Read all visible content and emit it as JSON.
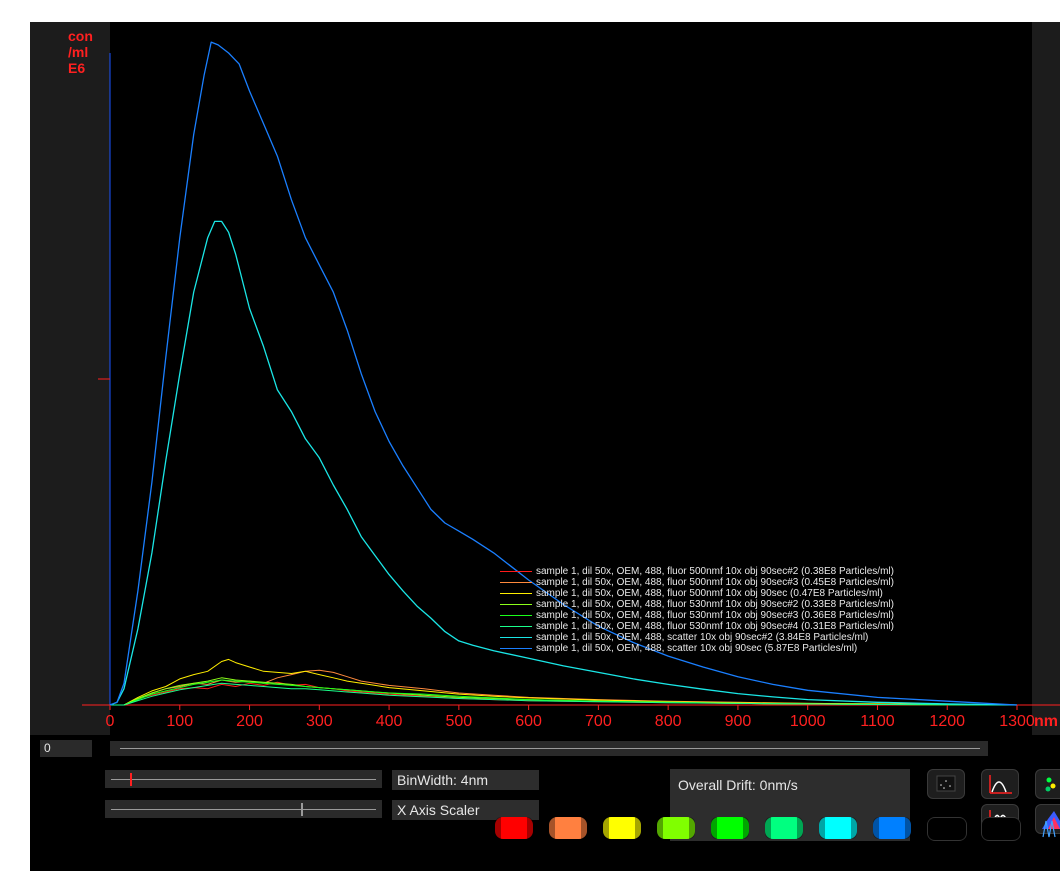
{
  "chart_data": {
    "type": "line",
    "y_unit_label": [
      "con",
      "/ml",
      "E6"
    ],
    "x_unit_label": "nm",
    "x_ticks": [
      "0",
      "100",
      "200",
      "300",
      "400",
      "500",
      "600",
      "700",
      "800",
      "900",
      "1000",
      "1100",
      "1200",
      "1300"
    ],
    "xlim": [
      0,
      1300
    ],
    "ylim": [
      0,
      12
    ],
    "series": [
      {
        "name": "sample 1, dil 50x, OEM, 488, fluor 500nmf 10x obj 90sec#2  (0.38E8 Particles/ml)",
        "color": "#ff1a1a",
        "points": [
          [
            0,
            0
          ],
          [
            20,
            0
          ],
          [
            40,
            0.12
          ],
          [
            60,
            0.18
          ],
          [
            80,
            0.24
          ],
          [
            100,
            0.3
          ],
          [
            120,
            0.32
          ],
          [
            140,
            0.3
          ],
          [
            160,
            0.38
          ],
          [
            180,
            0.34
          ],
          [
            200,
            0.4
          ],
          [
            220,
            0.36
          ],
          [
            240,
            0.42
          ],
          [
            260,
            0.36
          ],
          [
            280,
            0.38
          ],
          [
            300,
            0.32
          ],
          [
            320,
            0.3
          ],
          [
            340,
            0.26
          ],
          [
            360,
            0.24
          ],
          [
            380,
            0.22
          ],
          [
            400,
            0.2
          ],
          [
            450,
            0.16
          ],
          [
            500,
            0.12
          ],
          [
            550,
            0.1
          ],
          [
            600,
            0.08
          ],
          [
            700,
            0.06
          ],
          [
            800,
            0.04
          ],
          [
            900,
            0.03
          ],
          [
            1000,
            0.02
          ],
          [
            1100,
            0.01
          ],
          [
            1300,
            0
          ]
        ]
      },
      {
        "name": "sample 1, dil 50x, OEM, 488, fluor 500nmf 10x obj 90sec#3  (0.45E8 Particles/ml)",
        "color": "#ff8a3c",
        "points": [
          [
            0,
            0
          ],
          [
            20,
            0
          ],
          [
            40,
            0.1
          ],
          [
            60,
            0.22
          ],
          [
            80,
            0.3
          ],
          [
            100,
            0.34
          ],
          [
            120,
            0.4
          ],
          [
            140,
            0.38
          ],
          [
            160,
            0.46
          ],
          [
            180,
            0.42
          ],
          [
            200,
            0.44
          ],
          [
            220,
            0.4
          ],
          [
            240,
            0.5
          ],
          [
            260,
            0.56
          ],
          [
            280,
            0.62
          ],
          [
            300,
            0.64
          ],
          [
            320,
            0.6
          ],
          [
            340,
            0.52
          ],
          [
            360,
            0.44
          ],
          [
            380,
            0.4
          ],
          [
            400,
            0.36
          ],
          [
            450,
            0.3
          ],
          [
            500,
            0.22
          ],
          [
            550,
            0.18
          ],
          [
            600,
            0.14
          ],
          [
            700,
            0.1
          ],
          [
            800,
            0.07
          ],
          [
            900,
            0.05
          ],
          [
            1000,
            0.03
          ],
          [
            1100,
            0.02
          ],
          [
            1300,
            0
          ]
        ]
      },
      {
        "name": "sample 1, dil 50x, OEM, 488, fluor 500nmf 10x obj 90sec  (0.47E8 Particles/ml)",
        "color": "#ffee00",
        "points": [
          [
            0,
            0
          ],
          [
            20,
            0
          ],
          [
            40,
            0.14
          ],
          [
            60,
            0.26
          ],
          [
            80,
            0.34
          ],
          [
            100,
            0.48
          ],
          [
            120,
            0.56
          ],
          [
            140,
            0.62
          ],
          [
            160,
            0.8
          ],
          [
            170,
            0.84
          ],
          [
            180,
            0.78
          ],
          [
            200,
            0.7
          ],
          [
            220,
            0.62
          ],
          [
            240,
            0.6
          ],
          [
            260,
            0.58
          ],
          [
            280,
            0.62
          ],
          [
            300,
            0.56
          ],
          [
            320,
            0.5
          ],
          [
            340,
            0.44
          ],
          [
            360,
            0.4
          ],
          [
            380,
            0.36
          ],
          [
            400,
            0.32
          ],
          [
            450,
            0.26
          ],
          [
            500,
            0.2
          ],
          [
            550,
            0.16
          ],
          [
            600,
            0.13
          ],
          [
            700,
            0.09
          ],
          [
            800,
            0.06
          ],
          [
            900,
            0.04
          ],
          [
            1000,
            0.03
          ],
          [
            1100,
            0.02
          ],
          [
            1300,
            0
          ]
        ]
      },
      {
        "name": "sample 1, dil 50x, OEM, 488, fluor 530nmf 10x obj 90sec#2  (0.33E8 Particles/ml)",
        "color": "#8cff1a",
        "points": [
          [
            0,
            0
          ],
          [
            20,
            0
          ],
          [
            40,
            0.12
          ],
          [
            60,
            0.22
          ],
          [
            80,
            0.3
          ],
          [
            100,
            0.36
          ],
          [
            120,
            0.4
          ],
          [
            140,
            0.44
          ],
          [
            160,
            0.5
          ],
          [
            180,
            0.46
          ],
          [
            200,
            0.44
          ],
          [
            220,
            0.42
          ],
          [
            240,
            0.4
          ],
          [
            260,
            0.38
          ],
          [
            280,
            0.34
          ],
          [
            300,
            0.32
          ],
          [
            320,
            0.3
          ],
          [
            340,
            0.28
          ],
          [
            360,
            0.26
          ],
          [
            380,
            0.24
          ],
          [
            400,
            0.22
          ],
          [
            450,
            0.18
          ],
          [
            500,
            0.14
          ],
          [
            550,
            0.12
          ],
          [
            600,
            0.1
          ],
          [
            700,
            0.07
          ],
          [
            800,
            0.05
          ],
          [
            900,
            0.03
          ],
          [
            1000,
            0.02
          ],
          [
            1100,
            0.01
          ],
          [
            1300,
            0
          ]
        ]
      },
      {
        "name": "sample 1, dil 50x, OEM, 488, fluor 530nmf 10x obj 90sec#3  (0.36E8 Particles/ml)",
        "color": "#1aff1a",
        "points": [
          [
            0,
            0
          ],
          [
            20,
            0
          ],
          [
            40,
            0.1
          ],
          [
            60,
            0.2
          ],
          [
            80,
            0.26
          ],
          [
            100,
            0.32
          ],
          [
            120,
            0.38
          ],
          [
            140,
            0.42
          ],
          [
            160,
            0.46
          ],
          [
            180,
            0.44
          ],
          [
            200,
            0.42
          ],
          [
            220,
            0.4
          ],
          [
            240,
            0.38
          ],
          [
            260,
            0.36
          ],
          [
            280,
            0.34
          ],
          [
            300,
            0.32
          ],
          [
            320,
            0.3
          ],
          [
            340,
            0.28
          ],
          [
            360,
            0.26
          ],
          [
            380,
            0.24
          ],
          [
            400,
            0.22
          ],
          [
            450,
            0.2
          ],
          [
            500,
            0.16
          ],
          [
            550,
            0.13
          ],
          [
            600,
            0.1
          ],
          [
            700,
            0.07
          ],
          [
            800,
            0.05
          ],
          [
            900,
            0.03
          ],
          [
            1000,
            0.02
          ],
          [
            1100,
            0.01
          ],
          [
            1300,
            0
          ]
        ]
      },
      {
        "name": "sample 1, dil 50x, OEM, 488, fluor 530nmf 10x obj 90sec#4  (0.31E8 Particles/ml)",
        "color": "#1aff8c",
        "points": [
          [
            0,
            0
          ],
          [
            20,
            0
          ],
          [
            40,
            0.08
          ],
          [
            60,
            0.16
          ],
          [
            80,
            0.22
          ],
          [
            100,
            0.28
          ],
          [
            120,
            0.32
          ],
          [
            140,
            0.36
          ],
          [
            160,
            0.4
          ],
          [
            180,
            0.38
          ],
          [
            200,
            0.36
          ],
          [
            220,
            0.34
          ],
          [
            240,
            0.32
          ],
          [
            260,
            0.3
          ],
          [
            280,
            0.3
          ],
          [
            300,
            0.28
          ],
          [
            320,
            0.26
          ],
          [
            340,
            0.24
          ],
          [
            360,
            0.22
          ],
          [
            380,
            0.2
          ],
          [
            400,
            0.18
          ],
          [
            450,
            0.15
          ],
          [
            500,
            0.12
          ],
          [
            550,
            0.1
          ],
          [
            600,
            0.08
          ],
          [
            700,
            0.06
          ],
          [
            800,
            0.04
          ],
          [
            900,
            0.03
          ],
          [
            1000,
            0.02
          ],
          [
            1100,
            0.01
          ],
          [
            1300,
            0
          ]
        ]
      },
      {
        "name": "sample 1, dil 50x, OEM, 488, scatter 10x obj 90sec#2  (3.84E8 Particles/ml)",
        "color": "#1ae6e6",
        "points": [
          [
            0,
            0
          ],
          [
            10,
            0.05
          ],
          [
            20,
            0.3
          ],
          [
            40,
            1.4
          ],
          [
            60,
            2.8
          ],
          [
            80,
            4.5
          ],
          [
            100,
            6.1
          ],
          [
            120,
            7.6
          ],
          [
            140,
            8.6
          ],
          [
            150,
            8.9
          ],
          [
            160,
            8.9
          ],
          [
            170,
            8.7
          ],
          [
            180,
            8.3
          ],
          [
            200,
            7.3
          ],
          [
            220,
            6.6
          ],
          [
            240,
            5.8
          ],
          [
            260,
            5.4
          ],
          [
            280,
            4.9
          ],
          [
            300,
            4.55
          ],
          [
            320,
            4.05
          ],
          [
            340,
            3.6
          ],
          [
            360,
            3.1
          ],
          [
            380,
            2.75
          ],
          [
            400,
            2.4
          ],
          [
            420,
            2.1
          ],
          [
            440,
            1.82
          ],
          [
            460,
            1.6
          ],
          [
            480,
            1.35
          ],
          [
            500,
            1.18
          ],
          [
            520,
            1.1
          ],
          [
            550,
            1.0
          ],
          [
            600,
            0.86
          ],
          [
            650,
            0.72
          ],
          [
            700,
            0.6
          ],
          [
            750,
            0.48
          ],
          [
            800,
            0.38
          ],
          [
            850,
            0.29
          ],
          [
            900,
            0.21
          ],
          [
            950,
            0.15
          ],
          [
            1000,
            0.1
          ],
          [
            1100,
            0.05
          ],
          [
            1200,
            0.02
          ],
          [
            1300,
            0
          ]
        ]
      },
      {
        "name": "sample 1, dil 50x, OEM, 488, scatter 10x obj 90sec  (5.87E8 Particles/ml)",
        "color": "#1a7fff",
        "points": [
          [
            0,
            0
          ],
          [
            10,
            0.05
          ],
          [
            20,
            0.4
          ],
          [
            40,
            2.1
          ],
          [
            60,
            4.1
          ],
          [
            80,
            6.4
          ],
          [
            100,
            8.6
          ],
          [
            120,
            10.5
          ],
          [
            135,
            11.6
          ],
          [
            145,
            12.2
          ],
          [
            155,
            12.15
          ],
          [
            170,
            12.0
          ],
          [
            185,
            11.8
          ],
          [
            200,
            11.3
          ],
          [
            220,
            10.7
          ],
          [
            240,
            10.1
          ],
          [
            260,
            9.3
          ],
          [
            280,
            8.6
          ],
          [
            300,
            8.1
          ],
          [
            320,
            7.6
          ],
          [
            340,
            6.9
          ],
          [
            360,
            6.1
          ],
          [
            380,
            5.4
          ],
          [
            400,
            4.85
          ],
          [
            420,
            4.4
          ],
          [
            440,
            4.0
          ],
          [
            460,
            3.6
          ],
          [
            480,
            3.35
          ],
          [
            500,
            3.2
          ],
          [
            520,
            3.05
          ],
          [
            550,
            2.8
          ],
          [
            580,
            2.5
          ],
          [
            600,
            2.3
          ],
          [
            650,
            1.85
          ],
          [
            700,
            1.45
          ],
          [
            750,
            1.15
          ],
          [
            800,
            0.9
          ],
          [
            850,
            0.7
          ],
          [
            900,
            0.52
          ],
          [
            950,
            0.38
          ],
          [
            1000,
            0.27
          ],
          [
            1100,
            0.14
          ],
          [
            1200,
            0.07
          ],
          [
            1300,
            0
          ]
        ]
      }
    ]
  },
  "controls": {
    "position_value": "0",
    "bin_width_label": "BinWidth: 4nm",
    "x_axis_scaler_label": "X Axis Scaler",
    "drift_label": "Overall Drift: 0nm/s"
  },
  "color_buttons": [
    "#ff0000",
    "#ff8040",
    "#ffff00",
    "#80ff00",
    "#00ff00",
    "#00ff80",
    "#00ffff",
    "#0080ff",
    "#000000",
    "#000000"
  ]
}
